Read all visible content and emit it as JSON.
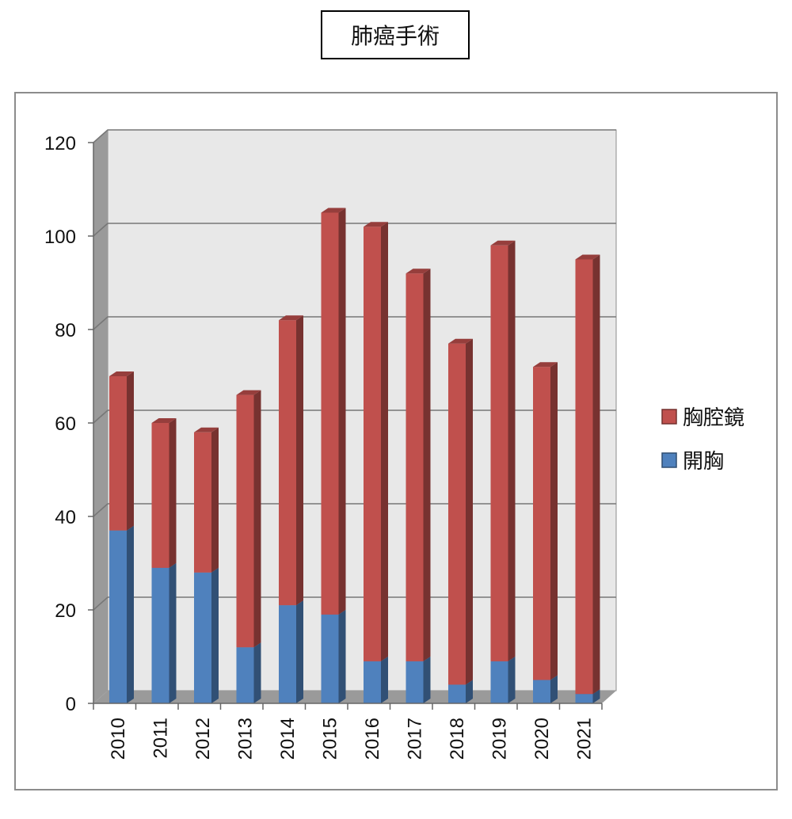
{
  "chart_data": {
    "type": "bar",
    "stacked": true,
    "style": "3d",
    "title": "肺癌手術",
    "categories": [
      "2010",
      "2011",
      "2012",
      "2013",
      "2014",
      "2015",
      "2016",
      "2017",
      "2018",
      "2019",
      "2020",
      "2021"
    ],
    "series": [
      {
        "name": "開胸",
        "color": "#4f81bd",
        "values": [
          37,
          29,
          28,
          12,
          21,
          19,
          9,
          9,
          4,
          9,
          5,
          2
        ]
      },
      {
        "name": "胸腔鏡",
        "color": "#c0504d",
        "values": [
          33,
          31,
          30,
          54,
          61,
          86,
          93,
          83,
          73,
          89,
          67,
          93
        ]
      }
    ],
    "ylim": [
      0,
      120
    ],
    "yticks": [
      0,
      20,
      40,
      60,
      80,
      100,
      120
    ],
    "grid": true,
    "legend_position": "right",
    "legend_order": [
      "胸腔鏡",
      "開胸"
    ]
  }
}
